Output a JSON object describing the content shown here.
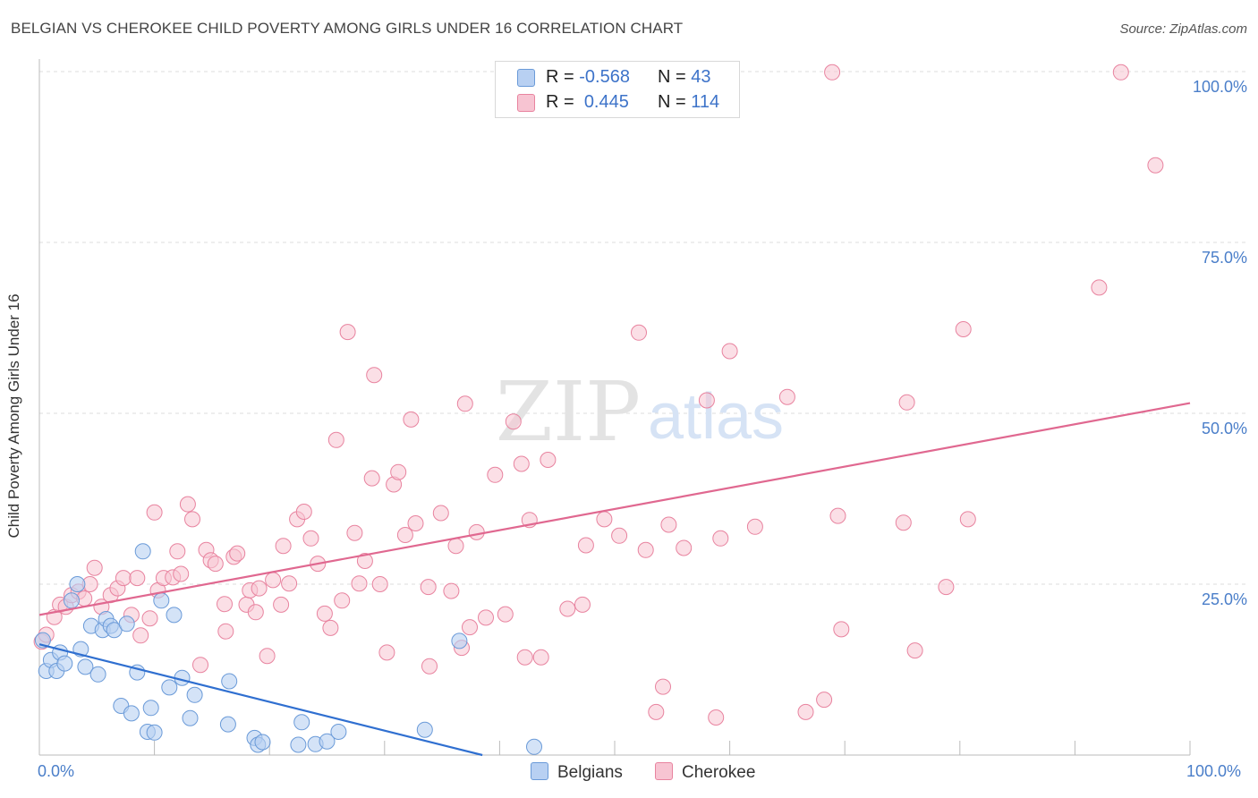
{
  "title": "BELGIAN VS CHEROKEE CHILD POVERTY AMONG GIRLS UNDER 16 CORRELATION CHART",
  "source": "Source: ZipAtlas.com",
  "watermark": {
    "zip": "ZIP",
    "atlas": "atlas"
  },
  "legend": {
    "rows": [
      {
        "r_label": "R =",
        "r_value": "-0.568",
        "n_label": "N =",
        "n_value": "43"
      },
      {
        "r_label": "R =",
        "r_value": "0.445",
        "n_label": "N =",
        "n_value": "114"
      }
    ]
  },
  "bottom_legend": {
    "belgians": "Belgians",
    "cherokee": "Cherokee"
  },
  "colors": {
    "belgians_fill": "#b8d0f2",
    "belgians_stroke": "#6a9ad8",
    "belgians_line": "#2f6fd0",
    "cherokee_fill": "#f7c4d2",
    "cherokee_stroke": "#e8839f",
    "cherokee_line": "#e06890",
    "tick_text": "#4a7ec9",
    "grid": "#dddddd"
  },
  "chart_data": {
    "type": "scatter",
    "title": "BELGIAN VS CHEROKEE CHILD POVERTY AMONG GIRLS UNDER 16 CORRELATION CHART",
    "xlabel": "",
    "ylabel": "Child Poverty Among Girls Under 16",
    "xlim": [
      0,
      100
    ],
    "ylim": [
      0,
      100
    ],
    "x_tick_labels": [
      "0.0%",
      "100.0%"
    ],
    "y_ticks": [
      25,
      50,
      75,
      100
    ],
    "y_tick_labels": [
      "25.0%",
      "50.0%",
      "75.0%",
      "100.0%"
    ],
    "grid": "horizontal dashed",
    "legend_placement": "top-center",
    "series": [
      {
        "name": "Belgians",
        "r": -0.568,
        "n": 43,
        "trend": {
          "x": [
            0,
            38.5
          ],
          "y": [
            16.2,
            0
          ]
        },
        "points": [
          [
            0.3,
            16.8
          ],
          [
            0.6,
            12.3
          ],
          [
            1.0,
            13.9
          ],
          [
            1.5,
            12.3
          ],
          [
            1.8,
            15.0
          ],
          [
            2.2,
            13.4
          ],
          [
            2.8,
            22.6
          ],
          [
            3.3,
            25.0
          ],
          [
            3.6,
            15.5
          ],
          [
            4.0,
            12.9
          ],
          [
            4.5,
            18.9
          ],
          [
            5.1,
            11.8
          ],
          [
            5.5,
            18.3
          ],
          [
            5.8,
            19.9
          ],
          [
            6.2,
            18.9
          ],
          [
            6.5,
            18.3
          ],
          [
            7.1,
            7.2
          ],
          [
            7.6,
            19.2
          ],
          [
            8.0,
            6.1
          ],
          [
            8.5,
            12.1
          ],
          [
            9.0,
            29.8
          ],
          [
            9.4,
            3.4
          ],
          [
            9.7,
            6.9
          ],
          [
            10.0,
            3.3
          ],
          [
            10.6,
            22.6
          ],
          [
            11.3,
            9.9
          ],
          [
            11.7,
            20.5
          ],
          [
            12.4,
            11.3
          ],
          [
            13.1,
            5.4
          ],
          [
            13.5,
            8.8
          ],
          [
            16.5,
            10.8
          ],
          [
            16.4,
            4.5
          ],
          [
            18.7,
            2.5
          ],
          [
            19.0,
            1.5
          ],
          [
            19.4,
            1.9
          ],
          [
            22.5,
            1.5
          ],
          [
            22.8,
            4.8
          ],
          [
            24.0,
            1.6
          ],
          [
            25.0,
            2.0
          ],
          [
            26.0,
            3.4
          ],
          [
            33.5,
            3.7
          ],
          [
            36.5,
            16.7
          ],
          [
            43.0,
            1.2
          ]
        ]
      },
      {
        "name": "Cherokee",
        "r": 0.445,
        "n": 114,
        "trend": {
          "x": [
            0,
            100
          ],
          "y": [
            20.5,
            51.5
          ]
        },
        "points": [
          [
            0.2,
            16.6
          ],
          [
            0.6,
            17.6
          ],
          [
            1.3,
            20.2
          ],
          [
            1.8,
            22.0
          ],
          [
            2.3,
            21.7
          ],
          [
            2.8,
            23.4
          ],
          [
            3.4,
            23.9
          ],
          [
            3.9,
            22.9
          ],
          [
            4.4,
            25.0
          ],
          [
            4.8,
            27.4
          ],
          [
            5.4,
            21.7
          ],
          [
            6.2,
            23.4
          ],
          [
            6.8,
            24.4
          ],
          [
            7.3,
            25.9
          ],
          [
            8.0,
            20.5
          ],
          [
            8.5,
            25.9
          ],
          [
            8.8,
            17.5
          ],
          [
            9.6,
            20.0
          ],
          [
            10.0,
            35.5
          ],
          [
            10.3,
            24.1
          ],
          [
            10.8,
            25.9
          ],
          [
            11.6,
            26.0
          ],
          [
            12.0,
            29.8
          ],
          [
            12.3,
            26.5
          ],
          [
            12.9,
            36.7
          ],
          [
            13.3,
            34.5
          ],
          [
            14.0,
            13.2
          ],
          [
            14.5,
            30.0
          ],
          [
            14.9,
            28.5
          ],
          [
            15.3,
            28.0
          ],
          [
            16.1,
            22.1
          ],
          [
            16.2,
            18.1
          ],
          [
            16.9,
            29.0
          ],
          [
            17.2,
            29.5
          ],
          [
            18.0,
            22.0
          ],
          [
            18.3,
            24.1
          ],
          [
            18.8,
            20.9
          ],
          [
            19.1,
            24.4
          ],
          [
            19.8,
            14.5
          ],
          [
            20.3,
            25.6
          ],
          [
            21.0,
            22.0
          ],
          [
            21.2,
            30.6
          ],
          [
            21.7,
            25.1
          ],
          [
            22.4,
            34.5
          ],
          [
            23.0,
            35.6
          ],
          [
            23.6,
            31.7
          ],
          [
            24.2,
            28.0
          ],
          [
            24.8,
            20.7
          ],
          [
            25.3,
            18.6
          ],
          [
            25.8,
            46.1
          ],
          [
            26.3,
            22.6
          ],
          [
            26.8,
            61.9
          ],
          [
            27.4,
            32.5
          ],
          [
            27.8,
            25.1
          ],
          [
            28.3,
            28.4
          ],
          [
            28.9,
            40.5
          ],
          [
            29.1,
            55.6
          ],
          [
            29.6,
            25.0
          ],
          [
            30.2,
            15.0
          ],
          [
            30.8,
            39.6
          ],
          [
            31.2,
            41.4
          ],
          [
            31.8,
            32.2
          ],
          [
            32.3,
            49.1
          ],
          [
            32.7,
            33.9
          ],
          [
            33.8,
            24.6
          ],
          [
            33.9,
            13.0
          ],
          [
            34.9,
            35.4
          ],
          [
            35.8,
            24.0
          ],
          [
            36.2,
            30.6
          ],
          [
            36.7,
            15.7
          ],
          [
            37.0,
            51.4
          ],
          [
            37.4,
            18.7
          ],
          [
            38.0,
            32.6
          ],
          [
            38.8,
            20.1
          ],
          [
            39.6,
            41.0
          ],
          [
            40.5,
            20.6
          ],
          [
            41.2,
            48.8
          ],
          [
            41.9,
            42.6
          ],
          [
            42.2,
            14.3
          ],
          [
            42.6,
            34.4
          ],
          [
            43.6,
            14.3
          ],
          [
            44.2,
            43.2
          ],
          [
            45.9,
            21.4
          ],
          [
            47.2,
            22.0
          ],
          [
            47.5,
            30.7
          ],
          [
            49.1,
            34.5
          ],
          [
            50.4,
            32.1
          ],
          [
            52.1,
            61.8
          ],
          [
            52.7,
            30.0
          ],
          [
            53.6,
            6.3
          ],
          [
            54.2,
            10.0
          ],
          [
            54.7,
            33.7
          ],
          [
            56.0,
            30.3
          ],
          [
            58.0,
            51.9
          ],
          [
            58.8,
            5.5
          ],
          [
            59.2,
            31.7
          ],
          [
            60.0,
            59.1
          ],
          [
            62.2,
            33.4
          ],
          [
            65.0,
            52.4
          ],
          [
            66.6,
            6.3
          ],
          [
            68.2,
            8.1
          ],
          [
            68.9,
            99.9
          ],
          [
            69.4,
            35.0
          ],
          [
            69.7,
            18.4
          ],
          [
            75.1,
            34.0
          ],
          [
            75.4,
            51.6
          ],
          [
            76.1,
            15.3
          ],
          [
            78.8,
            24.6
          ],
          [
            80.3,
            62.3
          ],
          [
            80.7,
            34.5
          ],
          [
            92.1,
            68.4
          ],
          [
            94.0,
            99.9
          ],
          [
            97.0,
            86.3
          ]
        ]
      }
    ]
  }
}
